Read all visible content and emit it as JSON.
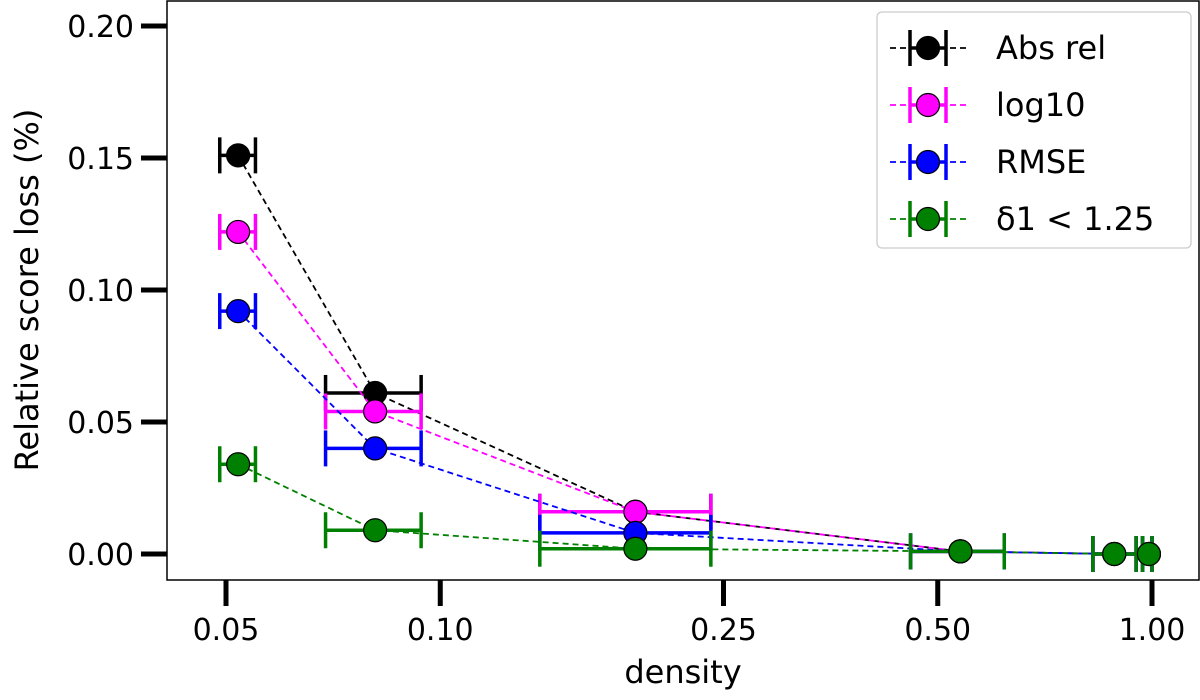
{
  "chart_data": {
    "type": "scatter",
    "title": "",
    "xlabel": "density",
    "ylabel": "Relative score loss (%)",
    "xscale": "log",
    "xlim": [
      0.04,
      1.1
    ],
    "ylim": [
      -0.01,
      0.21
    ],
    "xticks": [
      0.05,
      0.1,
      0.25,
      0.5,
      1.0
    ],
    "xtick_labels": [
      "0.05",
      "0.10",
      "0.25",
      "0.50",
      "1.00"
    ],
    "yticks": [
      0.0,
      0.05,
      0.1,
      0.15,
      0.2
    ],
    "ytick_labels": [
      "0.00",
      "0.05",
      "0.10",
      "0.15",
      "0.20"
    ],
    "grid": false,
    "legend_position": "top-right",
    "line_style": "dashed",
    "x": [
      0.052,
      0.081,
      0.188,
      0.538,
      0.885,
      0.99
    ],
    "x_err_low": [
      0.049,
      0.069,
      0.138,
      0.458,
      0.826,
      0.97
    ],
    "x_err_high": [
      0.055,
      0.094,
      0.24,
      0.62,
      0.95,
      1.0
    ],
    "series": [
      {
        "name": "Abs rel",
        "color": "#000000",
        "values": [
          0.151,
          0.061,
          0.016,
          0.001,
          0.0,
          0.0
        ]
      },
      {
        "name": "log10",
        "color": "#ff00ff",
        "values": [
          0.122,
          0.054,
          0.016,
          0.001,
          0.0,
          0.0
        ]
      },
      {
        "name": "RMSE",
        "color": "#0000ff",
        "values": [
          0.092,
          0.04,
          0.008,
          0.001,
          0.0,
          0.0
        ]
      },
      {
        "name": "δ1 < 1.25",
        "color": "#008000",
        "values": [
          0.034,
          0.009,
          0.002,
          0.001,
          0.0,
          0.0
        ]
      }
    ]
  }
}
